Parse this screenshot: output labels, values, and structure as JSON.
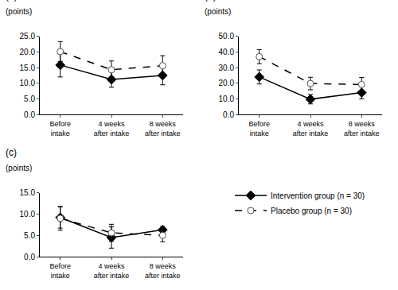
{
  "chart_data": [
    {
      "type": "line",
      "title": "(a)",
      "y_label": "(points)",
      "categories": [
        "Before intake",
        "4 weeks after intake",
        "8 weeks after intake"
      ],
      "ylim": [
        0,
        25
      ],
      "yticks": [
        {
          "value": 0,
          "label": "0.0"
        },
        {
          "value": 5,
          "label": "5.0"
        },
        {
          "value": 10,
          "label": "10.0"
        },
        {
          "value": 15,
          "label": "15.0"
        },
        {
          "value": 20,
          "label": "20.0"
        },
        {
          "value": 25,
          "label": "25.0"
        }
      ],
      "grid": false,
      "series": [
        {
          "name": "Intervention group (n = 30)",
          "color": "#000000",
          "marker": "diamond",
          "line_style": "solid",
          "values": [
            15.8,
            11.2,
            12.5
          ],
          "errors": [
            3.8,
            2.5,
            3.0
          ]
        },
        {
          "name": "Placebo group (n = 30)",
          "color": "#000000",
          "marker": "circle-open",
          "line_style": "dash",
          "values": [
            20.1,
            14.3,
            15.6
          ],
          "errors": [
            3.2,
            2.8,
            3.2
          ]
        }
      ]
    },
    {
      "type": "line",
      "title": "(b)",
      "y_label": "(points)",
      "categories": [
        "Before intake",
        "4 weeks after intake",
        "8 weeks after intake"
      ],
      "ylim": [
        0,
        50
      ],
      "yticks": [
        {
          "value": 0,
          "label": "0.0"
        },
        {
          "value": 10,
          "label": "10.0"
        },
        {
          "value": 20,
          "label": "20.0"
        },
        {
          "value": 30,
          "label": "30.0"
        },
        {
          "value": 40,
          "label": "40.0"
        },
        {
          "value": 50,
          "label": "50.0"
        }
      ],
      "grid": false,
      "series": [
        {
          "name": "Intervention group (n = 30)",
          "color": "#000000",
          "marker": "diamond",
          "line_style": "solid",
          "values": [
            24.0,
            9.8,
            14.0
          ],
          "errors": [
            4.5,
            3.0,
            4.0
          ]
        },
        {
          "name": "Placebo group (n = 30)",
          "color": "#000000",
          "marker": "circle-open",
          "line_style": "dash",
          "values": [
            37.0,
            19.8,
            19.2
          ],
          "errors": [
            4.5,
            4.0,
            4.5
          ]
        }
      ]
    },
    {
      "type": "line",
      "title": "(c)",
      "y_label": "(points)",
      "categories": [
        "Before intake",
        "4 weeks after intake",
        "8 weeks after intake"
      ],
      "ylim": [
        0,
        15
      ],
      "yticks": [
        {
          "value": 0,
          "label": "0.0"
        },
        {
          "value": 5,
          "label": "5.0"
        },
        {
          "value": 10,
          "label": "10.0"
        },
        {
          "value": 15,
          "label": "15.0"
        }
      ],
      "grid": false,
      "legend": "right",
      "series": [
        {
          "name": "Intervention group (n = 30)",
          "color": "#000000",
          "marker": "diamond",
          "line_style": "solid",
          "values": [
            9.2,
            4.5,
            6.3
          ],
          "errors": [
            2.5,
            2.5,
            0.8
          ]
        },
        {
          "name": "Placebo group (n = 30)",
          "color": "#000000",
          "marker": "circle-open",
          "line_style": "dash",
          "values": [
            9.0,
            5.6,
            5.0
          ],
          "errors": [
            2.8,
            2.0,
            1.5
          ]
        }
      ]
    }
  ]
}
